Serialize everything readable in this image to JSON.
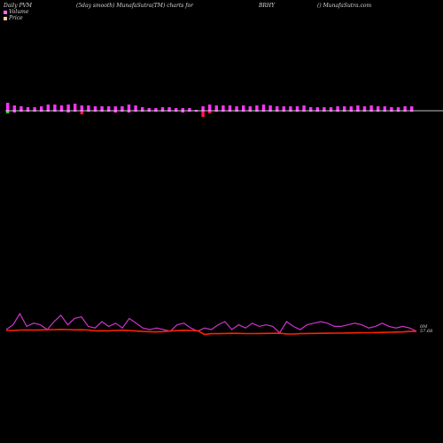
{
  "header": {
    "left": "Daily PVM",
    "smooth": "(5day smooth) MunafaSutra(TM) charts for",
    "symbol": "BRHY",
    "site": "() MunafaSutra.com"
  },
  "legend": {
    "volume": "Volume",
    "price": "Price"
  },
  "colors": {
    "background": "#000000",
    "volume_up": "#ff33ff",
    "volume_down": "#33cc33",
    "volume_neg": "#ff1a4d",
    "volume_line": "#ffffff",
    "volume_series": "#cc33cc",
    "price_series": "#ff2200",
    "legend_volume": "#ff66ff",
    "legend_price": "#ffcc99"
  },
  "chart_data": {
    "type": "bar",
    "bars": {
      "up": [
        9,
        6,
        5,
        4,
        4,
        5,
        7,
        7,
        6,
        7,
        8,
        6,
        6,
        5,
        5,
        5,
        5,
        5,
        7,
        6,
        4,
        3,
        3,
        4,
        4,
        3,
        3,
        3,
        1,
        5,
        7,
        6,
        6,
        6,
        5,
        6,
        5,
        6,
        7,
        6,
        5,
        5,
        5,
        5,
        6,
        4,
        4,
        4,
        4,
        5,
        5,
        5,
        6,
        5,
        6,
        5,
        5,
        4,
        4,
        5,
        5
      ],
      "down": [
        3,
        2,
        1,
        1,
        1,
        1,
        1,
        1,
        1,
        2,
        1,
        4,
        1,
        1,
        1,
        1,
        2,
        1,
        2,
        1,
        1,
        1,
        1,
        1,
        1,
        1,
        2,
        1,
        1,
        7,
        3,
        1,
        1,
        1,
        1,
        1,
        1,
        1,
        1,
        1,
        1,
        1,
        1,
        1,
        1,
        1,
        1,
        1,
        1,
        1,
        1,
        1,
        1,
        1,
        1,
        1,
        1,
        1,
        1,
        1,
        1
      ],
      "down_colors": [
        1,
        0,
        0,
        0,
        0,
        0,
        0,
        0,
        0,
        0,
        0,
        2,
        0,
        0,
        0,
        0,
        0,
        0,
        0,
        0,
        0,
        0,
        0,
        0,
        0,
        0,
        0,
        0,
        0,
        2,
        2,
        0,
        0,
        0,
        0,
        0,
        0,
        0,
        0,
        0,
        0,
        0,
        0,
        0,
        0,
        0,
        0,
        0,
        0,
        0,
        0,
        0,
        0,
        0,
        0,
        0,
        0,
        0,
        0,
        0,
        0
      ]
    },
    "series": [
      {
        "name": "Volume",
        "values": [
          0,
          3,
          10,
          2,
          4,
          3,
          0,
          5,
          9,
          3,
          7,
          8,
          2,
          1,
          5,
          2,
          4,
          1,
          7,
          4,
          1,
          0,
          1,
          0,
          -1,
          3,
          4,
          1,
          -1,
          1,
          0,
          3,
          5,
          0,
          3,
          1,
          4,
          2,
          3,
          2,
          -2,
          5,
          2,
          0,
          3,
          4,
          5,
          4,
          2,
          2,
          3,
          4,
          3,
          1,
          2,
          4,
          2,
          1,
          2,
          1,
          -1
        ]
      },
      {
        "name": "Price",
        "values": [
          0,
          0,
          0.5,
          0.6,
          0.5,
          0.6,
          0.8,
          1,
          1.2,
          1,
          0.7,
          0.8,
          0.5,
          -0.4,
          -0.3,
          -0.4,
          0,
          0.3,
          -0.2,
          -0.6,
          -1.1,
          -1.4,
          -1.6,
          -1.3,
          -0.6,
          -0.2,
          0.2,
          -0.1,
          -0.2,
          -4.5,
          -3.6,
          -3.6,
          -3.4,
          -3.2,
          -3.3,
          -3.5,
          -3.5,
          -3.4,
          -3.3,
          -3.2,
          -3.1,
          -3.9,
          -4,
          -3.6,
          -3.4,
          -3.3,
          -3.2,
          -3.1,
          -3,
          -3,
          -2.8,
          -2.7,
          -2.6,
          -2.5,
          -2.4,
          -2.2,
          -2,
          -1.8,
          -1.6,
          -1.1,
          -1.1
        ]
      }
    ],
    "end_labels": [
      "0M",
      "57.68"
    ]
  }
}
